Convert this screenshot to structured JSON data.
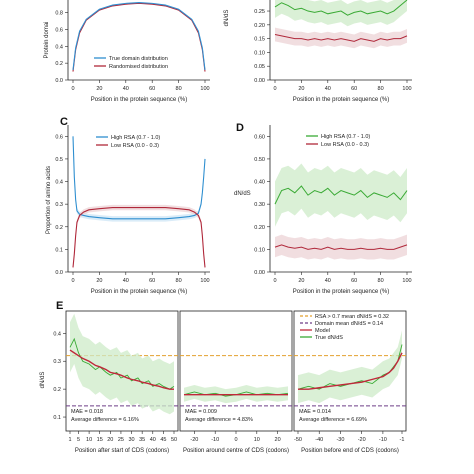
{
  "colors": {
    "blue": "#2f8fd0",
    "red": "#b0283a",
    "green": "#3aaa35",
    "green_band": "#cdebc8",
    "red_band": "#ecd3d6",
    "blue_band": "#cde6f5",
    "orange_dash": "#e3a12f",
    "purple_dash": "#6e3d86",
    "model_red": "#c0283a"
  },
  "panels": {
    "A": {
      "letter": "",
      "ylabel": "Protein domai",
      "xlabel": "Position in the protein sequence (%)",
      "yticks": [
        "0.0",
        "0.2",
        "0.4",
        "0.6",
        "0.8"
      ],
      "xticks": [
        "0",
        "20",
        "40",
        "60",
        "80",
        "100"
      ],
      "legend": [
        "True domain distribution",
        "Randomised distribution"
      ]
    },
    "B": {
      "letter": "",
      "ylabel": "dN/dS",
      "xlabel": "Position in the protein sequence (%)",
      "yticks": [
        "0.00",
        "0.05",
        "0.10",
        "0.15",
        "0.20",
        "0.25"
      ],
      "xticks": [
        "0",
        "20",
        "40",
        "60",
        "80",
        "100"
      ]
    },
    "C": {
      "letter": "C",
      "ylabel": "Proportion of amino acids",
      "xlabel": "Position in the protein sequence (%)",
      "yticks": [
        "0.0",
        "0.1",
        "0.2",
        "0.3",
        "0.4",
        "0.5",
        "0.6"
      ],
      "xticks": [
        "0",
        "20",
        "40",
        "60",
        "80",
        "100"
      ],
      "legend": [
        "High RSA  (0.7 - 1.0)",
        "Low RSA  (0.0 - 0.3)"
      ]
    },
    "D": {
      "letter": "D",
      "ylabel": "dN/dS",
      "xlabel": "Position in the protein sequence (%)",
      "yticks": [
        "0.00",
        "0.10",
        "0.20",
        "0.30",
        "0.40",
        "0.50",
        "0.60"
      ],
      "xticks": [
        "0",
        "20",
        "40",
        "60",
        "80",
        "100"
      ],
      "legend": [
        "High RSA  (0.7 - 1.0)",
        "Low RSA  (0.0 - 0.3)"
      ]
    },
    "E": {
      "letter": "E",
      "ylabel": "dN/dS",
      "yticks": [
        "0.0",
        "0.1",
        "0.2",
        "0.3",
        "0.4",
        "0.5"
      ],
      "legend": [
        "RSA > 0.7 mean dN/dS  = 0.32",
        "Domain mean dN/dS      = 0.14",
        "Model",
        "True dN/dS"
      ],
      "sub": [
        {
          "xlabel": "Position after start of CDS (codons)",
          "xticks": [
            "1",
            "5",
            "10",
            "15",
            "20",
            "25",
            "30",
            "35",
            "40",
            "45",
            "50"
          ],
          "mae": "MAE = 0.018",
          "avg": "Average difference = 6.16%"
        },
        {
          "xlabel": "Position around centre of CDS (codons)",
          "xticks": [
            "-20",
            "-10",
            "0",
            "10",
            "20"
          ],
          "mae": "MAE = 0.009",
          "avg": "Average difference = 4.83%"
        },
        {
          "xlabel": "Position before end of CDS (codons)",
          "xticks": [
            "-50",
            "-40",
            "-30",
            "-20",
            "-10",
            "-1"
          ],
          "mae": "MAE = 0.014",
          "avg": "Average difference = 6.69%"
        }
      ]
    }
  },
  "chart_data": [
    {
      "panel": "A",
      "type": "line",
      "x": [
        0,
        2,
        5,
        10,
        20,
        30,
        40,
        50,
        60,
        70,
        80,
        90,
        95,
        98,
        100
      ],
      "series": [
        {
          "name": "True domain distribution",
          "values": [
            0.12,
            0.38,
            0.58,
            0.72,
            0.84,
            0.89,
            0.91,
            0.92,
            0.91,
            0.89,
            0.84,
            0.72,
            0.58,
            0.38,
            0.12
          ]
        },
        {
          "name": "Randomised distribution",
          "values": [
            0.1,
            0.36,
            0.56,
            0.71,
            0.83,
            0.88,
            0.9,
            0.91,
            0.9,
            0.88,
            0.83,
            0.71,
            0.56,
            0.36,
            0.1
          ]
        }
      ],
      "ylim": [
        0,
        0.95
      ]
    },
    {
      "panel": "B",
      "type": "line",
      "x": [
        0,
        5,
        10,
        15,
        20,
        25,
        30,
        35,
        40,
        45,
        50,
        55,
        60,
        65,
        70,
        75,
        80,
        85,
        90,
        95,
        100
      ],
      "series": [
        {
          "name": "",
          "values": [
            0.265,
            0.28,
            0.27,
            0.255,
            0.26,
            0.25,
            0.245,
            0.25,
            0.24,
            0.245,
            0.25,
            0.235,
            0.245,
            0.25,
            0.24,
            0.245,
            0.25,
            0.24,
            0.25,
            0.27,
            0.29
          ]
        },
        {
          "name": "",
          "values": [
            0.165,
            0.16,
            0.155,
            0.15,
            0.15,
            0.145,
            0.15,
            0.145,
            0.15,
            0.145,
            0.15,
            0.145,
            0.14,
            0.15,
            0.145,
            0.14,
            0.15,
            0.145,
            0.15,
            0.15,
            0.16
          ]
        }
      ],
      "ylim": [
        0,
        0.29
      ]
    },
    {
      "panel": "C",
      "type": "line",
      "x": [
        0,
        1,
        2,
        3,
        5,
        8,
        12,
        20,
        30,
        40,
        50,
        60,
        70,
        80,
        88,
        92,
        95,
        97,
        98,
        99,
        100
      ],
      "series": [
        {
          "name": "High RSA  (0.7 - 1.0)",
          "values": [
            0.6,
            0.42,
            0.32,
            0.27,
            0.255,
            0.25,
            0.245,
            0.24,
            0.235,
            0.235,
            0.235,
            0.235,
            0.235,
            0.24,
            0.245,
            0.25,
            0.26,
            0.3,
            0.35,
            0.42,
            0.5
          ]
        },
        {
          "name": "Low RSA  (0.0 - 0.3)",
          "values": [
            0.02,
            0.08,
            0.16,
            0.22,
            0.25,
            0.265,
            0.275,
            0.28,
            0.285,
            0.285,
            0.285,
            0.285,
            0.285,
            0.28,
            0.275,
            0.265,
            0.25,
            0.22,
            0.16,
            0.08,
            0.02
          ]
        }
      ],
      "ylim": [
        0,
        0.65
      ]
    },
    {
      "panel": "D",
      "type": "line",
      "x": [
        0,
        5,
        10,
        15,
        20,
        25,
        30,
        35,
        40,
        45,
        50,
        55,
        60,
        65,
        70,
        75,
        80,
        85,
        90,
        95,
        100
      ],
      "series": [
        {
          "name": "High RSA  (0.7 - 1.0)",
          "values": [
            0.3,
            0.36,
            0.37,
            0.35,
            0.38,
            0.34,
            0.36,
            0.35,
            0.37,
            0.34,
            0.36,
            0.35,
            0.34,
            0.36,
            0.33,
            0.35,
            0.34,
            0.33,
            0.35,
            0.32,
            0.36
          ]
        },
        {
          "name": "Low RSA  (0.0 - 0.3)",
          "values": [
            0.11,
            0.12,
            0.11,
            0.105,
            0.11,
            0.1,
            0.105,
            0.1,
            0.11,
            0.1,
            0.105,
            0.1,
            0.1,
            0.105,
            0.1,
            0.1,
            0.105,
            0.1,
            0.1,
            0.11,
            0.12
          ]
        }
      ],
      "ylim": [
        0,
        0.65
      ]
    },
    {
      "panel": "E1",
      "type": "line",
      "x": [
        1,
        3,
        5,
        7,
        10,
        13,
        15,
        18,
        20,
        23,
        25,
        28,
        30,
        33,
        35,
        38,
        40,
        43,
        45,
        48,
        50
      ],
      "series": [
        {
          "name": "True dN/dS",
          "values": [
            0.35,
            0.38,
            0.33,
            0.3,
            0.29,
            0.27,
            0.28,
            0.26,
            0.25,
            0.26,
            0.24,
            0.25,
            0.23,
            0.24,
            0.22,
            0.23,
            0.21,
            0.22,
            0.21,
            0.2,
            0.21
          ]
        },
        {
          "name": "Model",
          "values": [
            0.34,
            0.33,
            0.32,
            0.31,
            0.3,
            0.285,
            0.28,
            0.27,
            0.26,
            0.255,
            0.25,
            0.24,
            0.235,
            0.23,
            0.225,
            0.22,
            0.215,
            0.21,
            0.205,
            0.2,
            0.2
          ]
        }
      ],
      "hlines": {
        "RSA > 0.7 mean dN/dS": 0.32,
        "Domain mean dN/dS": 0.14
      },
      "ylim": [
        0.05,
        0.48
      ]
    },
    {
      "panel": "E2",
      "type": "line",
      "x": [
        -25,
        -20,
        -15,
        -10,
        -5,
        0,
        5,
        10,
        15,
        20,
        25
      ],
      "series": [
        {
          "name": "True dN/dS",
          "values": [
            0.18,
            0.19,
            0.18,
            0.185,
            0.175,
            0.18,
            0.19,
            0.18,
            0.185,
            0.18,
            0.185
          ]
        },
        {
          "name": "Model",
          "values": [
            0.18,
            0.18,
            0.18,
            0.18,
            0.18,
            0.18,
            0.18,
            0.18,
            0.18,
            0.18,
            0.18
          ]
        }
      ],
      "ylim": [
        0.05,
        0.48
      ]
    },
    {
      "panel": "E3",
      "type": "line",
      "x": [
        -50,
        -45,
        -40,
        -35,
        -30,
        -25,
        -20,
        -15,
        -10,
        -7,
        -5,
        -3,
        -1
      ],
      "series": [
        {
          "name": "True dN/dS",
          "values": [
            0.2,
            0.21,
            0.2,
            0.22,
            0.21,
            0.22,
            0.23,
            0.22,
            0.25,
            0.26,
            0.28,
            0.3,
            0.36
          ]
        },
        {
          "name": "Model",
          "values": [
            0.2,
            0.2,
            0.205,
            0.21,
            0.215,
            0.22,
            0.225,
            0.235,
            0.245,
            0.26,
            0.275,
            0.3,
            0.33
          ]
        }
      ],
      "ylim": [
        0.05,
        0.48
      ]
    }
  ]
}
